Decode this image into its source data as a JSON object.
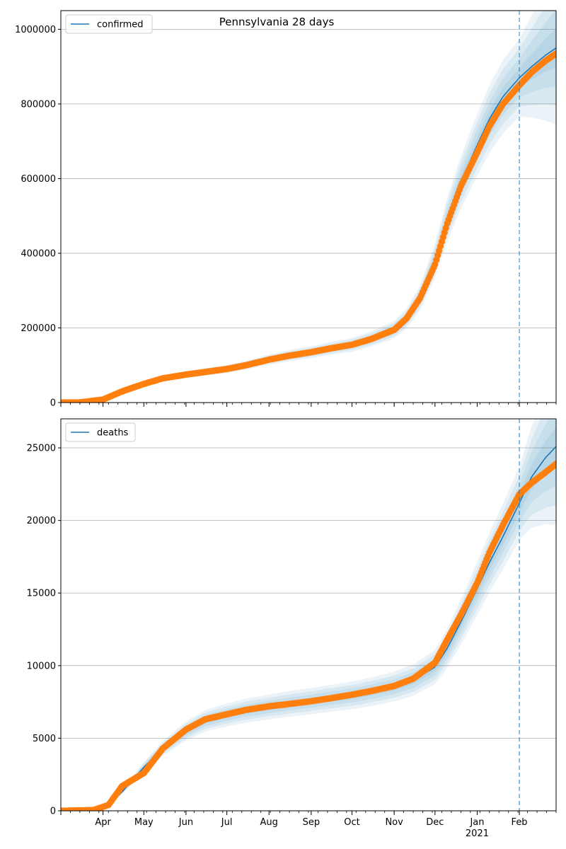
{
  "chart_data": [
    {
      "type": "line",
      "title": "Pennsylvania 28 days",
      "xlabel": "",
      "ylabel": "",
      "legend": {
        "label": "confirmed",
        "placement": "top-left"
      },
      "grid": "y",
      "ylim": [
        0,
        1050000
      ],
      "yticks": [
        0,
        200000,
        400000,
        600000,
        800000,
        1000000
      ],
      "ytick_labels": [
        "0",
        "200000",
        "400000",
        "600000",
        "800000",
        "1000000"
      ],
      "xlim": [
        "2020-03-01",
        "2021-02-28"
      ],
      "forecast_start": "2021-02-01",
      "series": [
        {
          "name": "confirmed",
          "color": "#1f77b4",
          "x": [
            "2020-03-01",
            "2020-03-15",
            "2020-04-01",
            "2020-04-15",
            "2020-05-01",
            "2020-05-15",
            "2020-06-01",
            "2020-06-15",
            "2020-07-01",
            "2020-07-15",
            "2020-08-01",
            "2020-08-15",
            "2020-09-01",
            "2020-09-15",
            "2020-10-01",
            "2020-10-15",
            "2020-11-01",
            "2020-11-10",
            "2020-11-20",
            "2020-12-01",
            "2020-12-10",
            "2020-12-20",
            "2021-01-01",
            "2021-01-10",
            "2021-01-20",
            "2021-02-01",
            "2021-02-10",
            "2021-02-20",
            "2021-02-28"
          ],
          "y": [
            0,
            500,
            8000,
            30000,
            50000,
            65000,
            75000,
            82000,
            90000,
            100000,
            115000,
            125000,
            135000,
            145000,
            155000,
            170000,
            195000,
            225000,
            280000,
            380000,
            490000,
            590000,
            690000,
            760000,
            820000,
            870000,
            900000,
            930000,
            950000
          ]
        }
      ],
      "observed": {
        "color": "#ff7f0e",
        "x": [
          "2020-03-01",
          "2020-03-15",
          "2020-04-01",
          "2020-04-15",
          "2020-05-01",
          "2020-05-15",
          "2020-06-01",
          "2020-06-15",
          "2020-07-01",
          "2020-07-15",
          "2020-08-01",
          "2020-08-15",
          "2020-09-01",
          "2020-09-15",
          "2020-10-01",
          "2020-10-15",
          "2020-11-01",
          "2020-11-10",
          "2020-11-20",
          "2020-12-01",
          "2020-12-10",
          "2020-12-20",
          "2021-01-01",
          "2021-01-10",
          "2021-01-20",
          "2021-02-01",
          "2021-02-10",
          "2021-02-20",
          "2021-02-28"
        ],
        "y": [
          0,
          500,
          8000,
          30000,
          50000,
          65000,
          75000,
          82000,
          90000,
          100000,
          115000,
          125000,
          135000,
          145000,
          155000,
          170000,
          195000,
          225000,
          280000,
          370000,
          480000,
          580000,
          670000,
          740000,
          800000,
          850000,
          885000,
          915000,
          935000
        ]
      }
    },
    {
      "type": "line",
      "title": "",
      "xlabel": "",
      "ylabel": "",
      "legend": {
        "label": "deaths",
        "placement": "top-left"
      },
      "grid": "y",
      "ylim": [
        0,
        27000
      ],
      "yticks": [
        0,
        5000,
        10000,
        15000,
        20000,
        25000
      ],
      "ytick_labels": [
        "0",
        "5000",
        "10000",
        "15000",
        "20000",
        "25000"
      ],
      "xlim": [
        "2020-03-01",
        "2021-02-28"
      ],
      "xtick_labels": [
        "Apr",
        "May",
        "Jun",
        "Jul",
        "Aug",
        "Sep",
        "Oct",
        "Nov",
        "Dec",
        "Jan",
        "Feb"
      ],
      "year_label": "2021",
      "forecast_start": "2021-02-01",
      "series": [
        {
          "name": "deaths",
          "color": "#1f77b4",
          "x": [
            "2020-03-01",
            "2020-03-25",
            "2020-04-05",
            "2020-04-15",
            "2020-05-01",
            "2020-05-15",
            "2020-06-01",
            "2020-06-15",
            "2020-07-01",
            "2020-07-15",
            "2020-08-01",
            "2020-08-15",
            "2020-09-01",
            "2020-09-15",
            "2020-10-01",
            "2020-10-15",
            "2020-11-01",
            "2020-11-15",
            "2020-12-01",
            "2020-12-10",
            "2020-12-20",
            "2021-01-01",
            "2021-01-10",
            "2021-01-20",
            "2021-02-01",
            "2021-02-10",
            "2021-02-20",
            "2021-02-28"
          ],
          "y": [
            0,
            50,
            400,
            1300,
            3000,
            4300,
            5500,
            6200,
            6600,
            6900,
            7150,
            7350,
            7550,
            7750,
            7950,
            8200,
            8550,
            9000,
            9900,
            11200,
            13000,
            15300,
            17100,
            18900,
            21200,
            23000,
            24300,
            25100
          ]
        }
      ],
      "observed": {
        "color": "#ff7f0e",
        "x": [
          "2020-03-01",
          "2020-03-25",
          "2020-04-05",
          "2020-04-15",
          "2020-05-01",
          "2020-05-15",
          "2020-06-01",
          "2020-06-15",
          "2020-07-01",
          "2020-07-15",
          "2020-08-01",
          "2020-08-15",
          "2020-09-01",
          "2020-09-15",
          "2020-10-01",
          "2020-10-15",
          "2020-11-01",
          "2020-11-15",
          "2020-12-01",
          "2020-12-10",
          "2020-12-20",
          "2021-01-01",
          "2021-01-10",
          "2021-01-20",
          "2021-02-01",
          "2021-02-10",
          "2021-02-20",
          "2021-02-28"
        ],
        "y": [
          0,
          50,
          400,
          1700,
          2600,
          4300,
          5600,
          6300,
          6650,
          6950,
          7200,
          7350,
          7550,
          7750,
          8000,
          8250,
          8600,
          9100,
          10200,
          11800,
          13500,
          15700,
          17800,
          19700,
          21800,
          22600,
          23300,
          23900
        ]
      }
    }
  ]
}
